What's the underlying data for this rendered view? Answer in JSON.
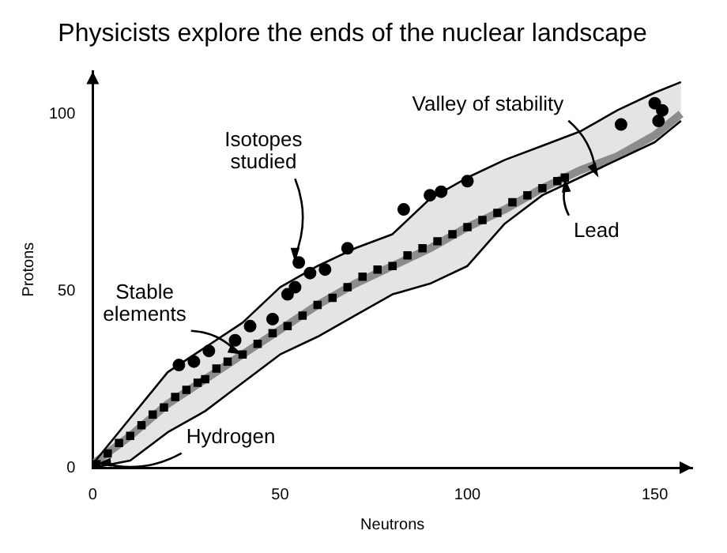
{
  "chart_data": {
    "type": "scatter",
    "title": "Physicists explore the ends of the nuclear landscape",
    "xlabel": "Neutrons",
    "ylabel": "Protons",
    "xlim": [
      0,
      160
    ],
    "ylim": [
      0,
      112
    ],
    "xticks": [
      0,
      50,
      100,
      150
    ],
    "yticks": [
      0,
      50,
      100
    ],
    "grid": false,
    "legend": false,
    "series": [
      {
        "type": "line",
        "color": "#000000",
        "marker": "none",
        "x": [
          0,
          10,
          20,
          30,
          40,
          50,
          60,
          70,
          80,
          90,
          100,
          110,
          120,
          130,
          140,
          150,
          157
        ],
        "values": [
          1,
          14,
          27,
          34,
          41,
          51,
          57,
          62,
          66,
          76,
          82,
          87,
          91,
          95,
          101,
          106,
          109
        ]
      },
      {
        "type": "line",
        "color": "#000000",
        "marker": "none",
        "x": [
          0,
          10,
          20,
          30,
          40,
          50,
          60,
          70,
          80,
          90,
          100,
          110,
          120,
          130,
          140,
          150,
          157
        ],
        "values": [
          0,
          2,
          10,
          16,
          24,
          32,
          37,
          43,
          49,
          52,
          57,
          69,
          77,
          82,
          87,
          92,
          98
        ]
      },
      {
        "type": "line",
        "color": "#8c8c8c",
        "marker": "none",
        "x": [
          0,
          10,
          20,
          30,
          40,
          50,
          60,
          70,
          80,
          90,
          100,
          110,
          120,
          130,
          140,
          150,
          157
        ],
        "values": [
          1,
          9,
          18,
          25,
          32,
          39,
          46,
          52,
          57,
          62,
          68,
          73,
          79,
          84,
          88,
          94,
          100
        ],
        "lower": [
          0,
          2,
          10,
          16,
          24,
          32,
          37,
          43,
          49,
          52,
          57,
          69,
          77,
          82,
          87,
          92,
          98
        ],
        "upper": [
          1,
          14,
          27,
          34,
          41,
          51,
          57,
          62,
          66,
          76,
          82,
          87,
          91,
          95,
          101,
          106,
          109
        ]
      },
      {
        "color": "#000000",
        "marker": "square",
        "x": [
          1,
          4,
          7,
          10,
          13,
          16,
          19,
          22,
          25,
          28,
          30,
          33,
          36,
          40,
          44,
          48,
          52,
          56,
          60,
          64,
          68,
          72,
          76,
          80,
          84,
          88,
          92,
          96,
          100,
          104,
          108,
          112,
          116,
          120,
          124,
          126
        ],
        "values": [
          1,
          4,
          7,
          9,
          12,
          15,
          17,
          20,
          22,
          24,
          25,
          28,
          30,
          32,
          35,
          38,
          40,
          43,
          46,
          48,
          51,
          54,
          56,
          57,
          60,
          62,
          64,
          66,
          68,
          70,
          72,
          75,
          77,
          79,
          81,
          82
        ]
      },
      {
        "color": "#000000",
        "marker": "circle",
        "x": [
          23,
          27,
          31,
          38,
          42,
          48,
          52,
          54,
          55,
          58,
          62,
          68,
          83,
          90,
          93,
          100,
          141,
          150,
          152,
          151
        ],
        "values": [
          29,
          30,
          33,
          36,
          40,
          42,
          49,
          51,
          58,
          55,
          56,
          62,
          73,
          77,
          78,
          81,
          97,
          103,
          101,
          98
        ]
      }
    ],
    "annotations": [
      {
        "text": "Hydrogen",
        "x": 1,
        "y": 1
      },
      {
        "text": "Stable elements",
        "x": 40,
        "y": 32
      },
      {
        "text": "Isotopes studied",
        "x": 54,
        "y": 58
      },
      {
        "text": "Valley of stability",
        "x": 135,
        "y": 82
      },
      {
        "text": "Lead",
        "x": 126,
        "y": 82
      }
    ]
  }
}
